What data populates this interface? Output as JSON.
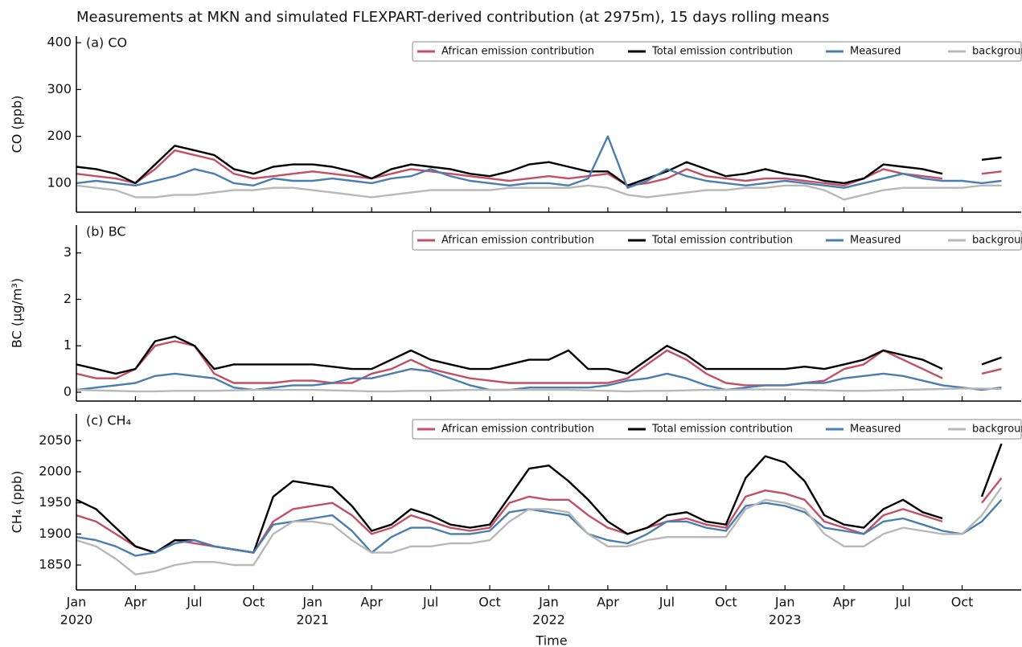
{
  "title": "Measurements at MKN and simulated FLEXPART-derived contribution (at 2975m), 15 days rolling means",
  "xlabel": "Time",
  "chart_data": [
    {
      "type": "line",
      "panel_label": "(a) CO",
      "ylabel": "CO (ppb)",
      "legend": "upper right",
      "xlim": [
        "2020-01",
        "2024-01"
      ],
      "ylim": [
        38,
        414
      ],
      "yticks": [
        100,
        200,
        300,
        400
      ],
      "x": [
        "2020-01",
        "2020-02",
        "2020-03",
        "2020-04",
        "2020-05",
        "2020-06",
        "2020-07",
        "2020-08",
        "2020-09",
        "2020-10",
        "2020-11",
        "2020-12",
        "2021-01",
        "2021-02",
        "2021-03",
        "2021-04",
        "2021-05",
        "2021-06",
        "2021-07",
        "2021-08",
        "2021-09",
        "2021-10",
        "2021-11",
        "2021-12",
        "2022-01",
        "2022-02",
        "2022-03",
        "2022-04",
        "2022-05",
        "2022-06",
        "2022-07",
        "2022-08",
        "2022-09",
        "2022-10",
        "2022-11",
        "2022-12",
        "2023-01",
        "2023-02",
        "2023-03",
        "2023-04",
        "2023-05",
        "2023-06",
        "2023-07",
        "2023-08",
        "2023-09",
        "2023-10",
        "2023-11",
        "2023-12"
      ],
      "series": [
        {
          "name": "African emission contribution",
          "color": "#c44e64",
          "values": [
            120,
            115,
            110,
            100,
            130,
            170,
            160,
            150,
            120,
            110,
            115,
            120,
            125,
            120,
            115,
            110,
            120,
            130,
            125,
            120,
            115,
            110,
            105,
            110,
            115,
            110,
            115,
            120,
            95,
            100,
            110,
            130,
            115,
            110,
            105,
            110,
            110,
            105,
            100,
            95,
            110,
            130,
            120,
            115,
            110,
            null,
            120,
            125
          ]
        },
        {
          "name": "Total emission contribution",
          "color": "#000000",
          "values": [
            135,
            130,
            120,
            100,
            140,
            180,
            170,
            160,
            130,
            120,
            135,
            140,
            140,
            135,
            125,
            110,
            130,
            140,
            135,
            130,
            120,
            115,
            125,
            140,
            145,
            135,
            125,
            125,
            95,
            110,
            125,
            145,
            130,
            115,
            120,
            130,
            120,
            115,
            105,
            100,
            110,
            140,
            135,
            130,
            120,
            null,
            150,
            155
          ]
        },
        {
          "name": "Measured",
          "color": "#4a7db0",
          "values": [
            100,
            105,
            100,
            95,
            105,
            115,
            130,
            120,
            100,
            95,
            110,
            105,
            105,
            110,
            105,
            100,
            110,
            115,
            130,
            115,
            105,
            100,
            95,
            100,
            100,
            95,
            110,
            200,
            90,
            105,
            130,
            115,
            105,
            100,
            95,
            100,
            105,
            100,
            95,
            90,
            100,
            110,
            120,
            110,
            105,
            105,
            100,
            105
          ]
        },
        {
          "name": "background",
          "color": "#b8b8b8",
          "values": [
            95,
            90,
            85,
            70,
            70,
            75,
            75,
            80,
            85,
            85,
            90,
            90,
            85,
            80,
            75,
            70,
            75,
            80,
            85,
            85,
            85,
            85,
            90,
            90,
            90,
            90,
            95,
            90,
            75,
            70,
            75,
            80,
            85,
            85,
            90,
            90,
            95,
            95,
            85,
            65,
            75,
            85,
            90,
            90,
            90,
            90,
            95,
            95
          ]
        }
      ]
    },
    {
      "type": "line",
      "panel_label": "(b) BC",
      "ylabel": "BC (μg/m³)",
      "legend": "upper right",
      "xlim": [
        "2020-01",
        "2024-01"
      ],
      "ylim": [
        -0.19,
        3.6
      ],
      "yticks": [
        0,
        1,
        2,
        3
      ],
      "x": [
        "2020-01",
        "2020-02",
        "2020-03",
        "2020-04",
        "2020-05",
        "2020-06",
        "2020-07",
        "2020-08",
        "2020-09",
        "2020-10",
        "2020-11",
        "2020-12",
        "2021-01",
        "2021-02",
        "2021-03",
        "2021-04",
        "2021-05",
        "2021-06",
        "2021-07",
        "2021-08",
        "2021-09",
        "2021-10",
        "2021-11",
        "2021-12",
        "2022-01",
        "2022-02",
        "2022-03",
        "2022-04",
        "2022-05",
        "2022-06",
        "2022-07",
        "2022-08",
        "2022-09",
        "2022-10",
        "2022-11",
        "2022-12",
        "2023-01",
        "2023-02",
        "2023-03",
        "2023-04",
        "2023-05",
        "2023-06",
        "2023-07",
        "2023-08",
        "2023-09",
        "2023-10",
        "2023-11",
        "2023-12"
      ],
      "series": [
        {
          "name": "African emission contribution",
          "color": "#c44e64",
          "values": [
            0.4,
            0.3,
            0.3,
            0.5,
            1.0,
            1.1,
            1.0,
            0.4,
            0.2,
            0.2,
            0.2,
            0.25,
            0.25,
            0.2,
            0.2,
            0.4,
            0.5,
            0.7,
            0.5,
            0.4,
            0.3,
            0.25,
            0.2,
            0.2,
            0.2,
            0.2,
            0.2,
            0.2,
            0.3,
            0.6,
            0.9,
            0.7,
            0.4,
            0.2,
            0.15,
            0.15,
            0.15,
            0.2,
            0.25,
            0.5,
            0.6,
            0.9,
            0.7,
            0.5,
            0.3,
            null,
            0.4,
            0.5
          ]
        },
        {
          "name": "Total emission contribution",
          "color": "#000000",
          "values": [
            0.6,
            0.5,
            0.4,
            0.5,
            1.1,
            1.2,
            1.0,
            0.5,
            0.6,
            0.6,
            0.6,
            0.6,
            0.6,
            0.55,
            0.5,
            0.5,
            0.7,
            0.9,
            0.7,
            0.6,
            0.5,
            0.5,
            0.6,
            0.7,
            0.7,
            0.9,
            0.5,
            0.5,
            0.4,
            0.7,
            1.0,
            0.8,
            0.5,
            0.5,
            0.5,
            0.5,
            0.5,
            0.55,
            0.5,
            0.6,
            0.7,
            0.9,
            0.8,
            0.7,
            0.5,
            null,
            0.6,
            0.75
          ]
        },
        {
          "name": "Measured",
          "color": "#4a7db0",
          "values": [
            0.05,
            0.1,
            0.15,
            0.2,
            0.35,
            0.4,
            0.35,
            0.3,
            0.1,
            0.05,
            0.1,
            0.15,
            0.15,
            0.2,
            0.3,
            0.3,
            0.4,
            0.5,
            0.45,
            0.3,
            0.15,
            0.05,
            0.05,
            0.1,
            0.1,
            0.1,
            0.1,
            0.15,
            0.25,
            0.3,
            0.4,
            0.3,
            0.15,
            0.05,
            0.1,
            0.15,
            0.15,
            0.2,
            0.2,
            0.3,
            0.35,
            0.4,
            0.35,
            0.25,
            0.15,
            0.1,
            0.05,
            0.1
          ]
        },
        {
          "name": "background",
          "color": "#b8b8b8",
          "values": [
            0.05,
            0.04,
            0.03,
            0.02,
            0.02,
            0.03,
            0.03,
            0.03,
            0.04,
            0.05,
            0.05,
            0.05,
            0.05,
            0.04,
            0.03,
            0.02,
            0.02,
            0.03,
            0.03,
            0.04,
            0.05,
            0.05,
            0.05,
            0.05,
            0.05,
            0.05,
            0.04,
            0.03,
            0.02,
            0.03,
            0.03,
            0.04,
            0.05,
            0.05,
            0.06,
            0.06,
            0.06,
            0.05,
            0.04,
            0.03,
            0.03,
            0.04,
            0.05,
            0.06,
            0.07,
            0.08,
            0.08,
            0.07
          ]
        }
      ]
    },
    {
      "type": "line",
      "panel_label": "(c) CH₄",
      "ylabel": "CH₄ (ppb)",
      "legend": "upper right",
      "xlim": [
        "2020-01",
        "2024-01"
      ],
      "ylim": [
        1810,
        2093
      ],
      "yticks": [
        1850,
        1900,
        1950,
        2000,
        2050
      ],
      "x": [
        "2020-01",
        "2020-02",
        "2020-03",
        "2020-04",
        "2020-05",
        "2020-06",
        "2020-07",
        "2020-08",
        "2020-09",
        "2020-10",
        "2020-11",
        "2020-12",
        "2021-01",
        "2021-02",
        "2021-03",
        "2021-04",
        "2021-05",
        "2021-06",
        "2021-07",
        "2021-08",
        "2021-09",
        "2021-10",
        "2021-11",
        "2021-12",
        "2022-01",
        "2022-02",
        "2022-03",
        "2022-04",
        "2022-05",
        "2022-06",
        "2022-07",
        "2022-08",
        "2022-09",
        "2022-10",
        "2022-11",
        "2022-12",
        "2023-01",
        "2023-02",
        "2023-03",
        "2023-04",
        "2023-05",
        "2023-06",
        "2023-07",
        "2023-08",
        "2023-09",
        "2023-10",
        "2023-11",
        "2023-12"
      ],
      "xticks": [
        {
          "value": "2020-01",
          "label": "Jan"
        },
        {
          "value": "2020-04",
          "label": "Apr"
        },
        {
          "value": "2020-07",
          "label": "Jul"
        },
        {
          "value": "2020-10",
          "label": "Oct"
        },
        {
          "value": "2021-01",
          "label": "Jan"
        },
        {
          "value": "2021-04",
          "label": "Apr"
        },
        {
          "value": "2021-07",
          "label": "Jul"
        },
        {
          "value": "2021-10",
          "label": "Oct"
        },
        {
          "value": "2022-01",
          "label": "Jan"
        },
        {
          "value": "2022-04",
          "label": "Apr"
        },
        {
          "value": "2022-07",
          "label": "Jul"
        },
        {
          "value": "2022-10",
          "label": "Oct"
        },
        {
          "value": "2023-01",
          "label": "Jan"
        },
        {
          "value": "2023-04",
          "label": "Apr"
        },
        {
          "value": "2023-07",
          "label": "Jul"
        },
        {
          "value": "2023-10",
          "label": "Oct"
        }
      ],
      "year_labels": [
        {
          "value": "2020-01",
          "label": "2020"
        },
        {
          "value": "2021-01",
          "label": "2021"
        },
        {
          "value": "2022-01",
          "label": "2022"
        },
        {
          "value": "2023-01",
          "label": "2023"
        }
      ],
      "series": [
        {
          "name": "African emission contribution",
          "color": "#c44e64",
          "values": [
            1930,
            1920,
            1900,
            1880,
            1870,
            1890,
            1885,
            1880,
            1875,
            1870,
            1920,
            1940,
            1945,
            1950,
            1930,
            1900,
            1910,
            1930,
            1920,
            1910,
            1905,
            1910,
            1950,
            1960,
            1955,
            1955,
            1930,
            1910,
            1900,
            1910,
            1920,
            1925,
            1915,
            1910,
            1960,
            1970,
            1965,
            1955,
            1920,
            1910,
            1900,
            1930,
            1940,
            1930,
            1920,
            null,
            1950,
            1990
          ]
        },
        {
          "name": "Total emission contribution",
          "color": "#000000",
          "values": [
            1955,
            1940,
            1910,
            1880,
            1870,
            1890,
            1890,
            1880,
            1875,
            1870,
            1960,
            1985,
            1980,
            1975,
            1945,
            1905,
            1915,
            1940,
            1930,
            1915,
            1910,
            1915,
            1960,
            2005,
            2010,
            1985,
            1955,
            1920,
            1900,
            1910,
            1930,
            1935,
            1920,
            1915,
            1990,
            2025,
            2015,
            1985,
            1930,
            1915,
            1910,
            1940,
            1955,
            1935,
            1925,
            null,
            1960,
            2045
          ]
        },
        {
          "name": "Measured",
          "color": "#4a7db0",
          "values": [
            1895,
            1890,
            1880,
            1865,
            1870,
            1885,
            1890,
            1880,
            1875,
            1870,
            1915,
            1920,
            1925,
            1930,
            1905,
            1870,
            1895,
            1910,
            1910,
            1900,
            1900,
            1905,
            1935,
            1940,
            1935,
            1930,
            1900,
            1890,
            1885,
            1900,
            1920,
            1920,
            1910,
            1905,
            1945,
            1950,
            1945,
            1935,
            1910,
            1905,
            1900,
            1920,
            1925,
            1915,
            1905,
            1900,
            1920,
            1955
          ]
        },
        {
          "name": "background",
          "color": "#b8b8b8",
          "values": [
            1890,
            1880,
            1860,
            1835,
            1840,
            1850,
            1855,
            1855,
            1850,
            1850,
            1900,
            1920,
            1920,
            1915,
            1890,
            1870,
            1870,
            1880,
            1880,
            1885,
            1885,
            1890,
            1920,
            1940,
            1940,
            1935,
            1900,
            1880,
            1880,
            1890,
            1895,
            1895,
            1895,
            1895,
            1940,
            1955,
            1950,
            1940,
            1900,
            1880,
            1880,
            1900,
            1910,
            1905,
            1900,
            1900,
            1930,
            1975
          ]
        }
      ]
    }
  ]
}
